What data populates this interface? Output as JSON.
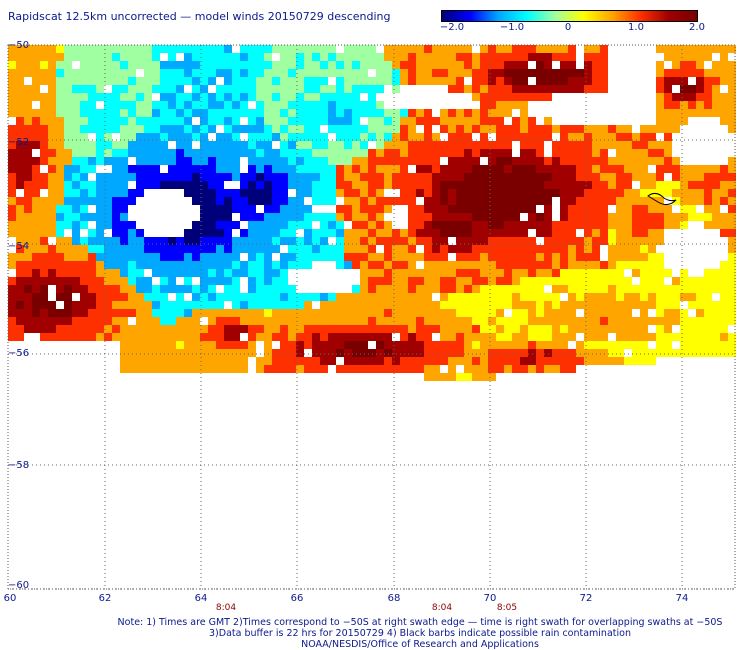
{
  "title": "Rapidscat 12.5km uncorrected — model winds 20150729 descending",
  "colorbar": {
    "labels": [
      "−2.0",
      "−1.0",
      "0",
      "1.0",
      "2.0"
    ],
    "colors": [
      "#00007a",
      "#0000ff",
      "#00a8ff",
      "#00ffff",
      "#a0ffa0",
      "#ffff00",
      "#ffa500",
      "#ff3000",
      "#a00000",
      "#7a0000"
    ]
  },
  "axes": {
    "y_labels": [
      "−50",
      "−52",
      "−54",
      "−56",
      "−58",
      "−60"
    ],
    "x_labels": [
      "60",
      "62",
      "64",
      "66",
      "68",
      "70",
      "72",
      "74"
    ]
  },
  "times": [
    "8:04",
    "8:04",
    "8:05"
  ],
  "notes": [
    "Note: 1) Times are GMT 2)Times correspond to −50S at right swath edge — time is right swath for overlapping swaths at −50S",
    "3)Data buffer is 22 hrs for 20150729 4) Black barbs indicate possible rain contamination",
    "NOAA/NESDIS/Office of Research and Applications"
  ]
}
